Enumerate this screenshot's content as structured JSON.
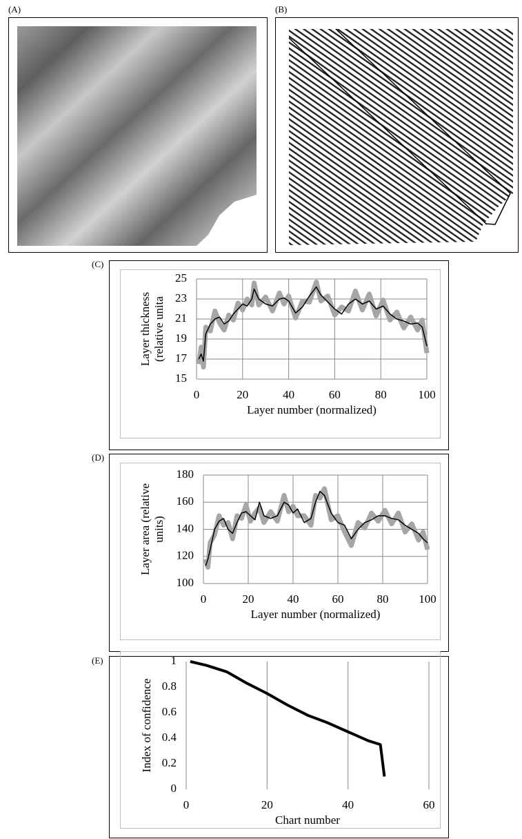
{
  "panel_labels": [
    "(A)",
    "(B)",
    "(C)",
    "(D)",
    "(E)"
  ],
  "chart_data": [
    {
      "type": "line",
      "ylabel": [
        "Layer thickness",
        "(relative unita"
      ],
      "xlabel": "Layer number (normalized)",
      "xlim": [
        0,
        100
      ],
      "xticks": [
        0,
        20,
        40,
        60,
        80,
        100
      ],
      "ylim": [
        15,
        25
      ],
      "yticks": [
        15,
        17,
        19,
        21,
        23,
        25
      ],
      "grid": "both",
      "x": [
        1,
        2,
        3,
        4,
        6,
        8,
        10,
        12,
        14,
        16,
        18,
        20,
        22,
        24,
        25,
        27,
        30,
        33,
        36,
        38,
        40,
        43,
        46,
        49,
        52,
        54,
        57,
        60,
        63,
        66,
        69,
        72,
        75,
        78,
        81,
        84,
        87,
        90,
        93,
        96,
        98,
        100
      ],
      "series": [
        {
          "color": "#a6a6a6",
          "values": [
            16.5,
            18.2,
            16.2,
            20.2,
            19.8,
            21.8,
            20.6,
            19.9,
            21.4,
            20.9,
            22.6,
            21.9,
            23.0,
            22.4,
            24.6,
            22.4,
            23.2,
            21.8,
            23.6,
            22.5,
            23.3,
            21.1,
            22.8,
            22.7,
            24.7,
            22.8,
            23.3,
            21.4,
            22.2,
            21.8,
            23.8,
            21.9,
            23.5,
            21.3,
            22.9,
            20.9,
            21.7,
            20.1,
            21.2,
            19.9,
            20.9,
            17.6
          ]
        },
        {
          "color": "#000000",
          "values": [
            17,
            17.5,
            16.8,
            19.5,
            20.5,
            21,
            21.2,
            20.5,
            20.8,
            21.5,
            22,
            22.5,
            22.3,
            23,
            24,
            23,
            22.5,
            22.3,
            23,
            23.1,
            22.8,
            21.6,
            22.2,
            23.3,
            24.2,
            23.4,
            22.7,
            22,
            21.5,
            22.5,
            23,
            22.5,
            22.8,
            22,
            22.3,
            21.5,
            21,
            20.8,
            20.5,
            20.6,
            20.2,
            18.3
          ]
        }
      ]
    },
    {
      "type": "line",
      "ylabel": [
        "Layer area (relative",
        "units)"
      ],
      "xlabel": "Layer number (normalized)",
      "xlim": [
        0,
        100
      ],
      "xticks": [
        0,
        20,
        40,
        60,
        80,
        100
      ],
      "ylim": [
        100,
        180
      ],
      "yticks": [
        100,
        120,
        140,
        160,
        180
      ],
      "grid": "both",
      "x": [
        1,
        2,
        3,
        5,
        7,
        9,
        11,
        13,
        15,
        17,
        19,
        21,
        23,
        25,
        27,
        30,
        33,
        36,
        38,
        40,
        42,
        45,
        48,
        50,
        52,
        54,
        57,
        60,
        63,
        66,
        69,
        72,
        75,
        78,
        81,
        84,
        87,
        90,
        93,
        96,
        98,
        100
      ],
      "series": [
        {
          "color": "#a6a6a6",
          "values": [
            118,
            112,
            130,
            136,
            150,
            143,
            145,
            133,
            150,
            148,
            158,
            146,
            152,
            156,
            145,
            153,
            146,
            165,
            153,
            157,
            150,
            150,
            143,
            165,
            163,
            170,
            147,
            150,
            138,
            128,
            145,
            141,
            152,
            146,
            154,
            144,
            152,
            138,
            144,
            132,
            138,
            125
          ]
        },
        {
          "color": "#000000",
          "values": [
            113,
            118,
            125,
            140,
            146,
            148,
            140,
            137,
            145,
            152,
            153,
            150,
            147,
            160,
            150,
            148,
            150,
            160,
            158,
            152,
            155,
            145,
            148,
            160,
            168,
            165,
            152,
            145,
            143,
            133,
            140,
            145,
            147,
            150,
            150,
            148,
            147,
            143,
            140,
            137,
            133,
            130
          ]
        }
      ]
    },
    {
      "type": "line",
      "ylabel": [
        "Index of confidence"
      ],
      "xlabel": "Chart number",
      "xlim": [
        0,
        60
      ],
      "xticks": [
        0,
        20,
        40,
        60
      ],
      "ylim": [
        0,
        1
      ],
      "yticks": [
        0,
        0.2,
        0.4,
        0.6,
        0.8,
        1
      ],
      "grid": "x",
      "x": [
        1,
        5,
        10,
        15,
        20,
        25,
        30,
        35,
        40,
        45,
        48,
        49
      ],
      "series": [
        {
          "color": "#000000",
          "values": [
            1,
            0.97,
            0.92,
            0.83,
            0.75,
            0.66,
            0.58,
            0.52,
            0.45,
            0.38,
            0.35,
            0.1
          ]
        }
      ]
    }
  ]
}
